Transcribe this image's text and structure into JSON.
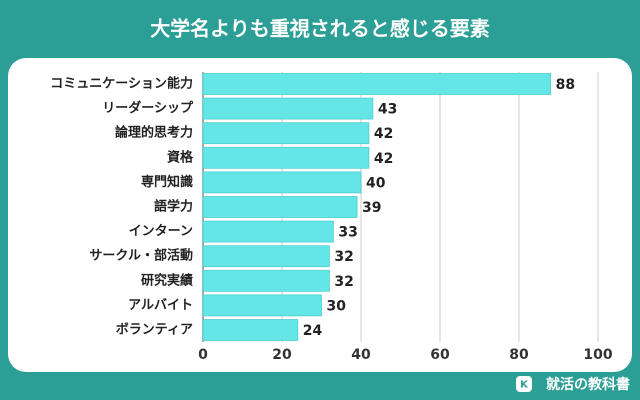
{
  "chart_data": {
    "type": "hbar",
    "title": "大学名よりも重視されると感じる要素",
    "categories": [
      "コミュニケーション能力",
      "リーダーシップ",
      "論理的思考力",
      "資格",
      "専門知識",
      "語学力",
      "インターン",
      "サークル・部活動",
      "研究実績",
      "アルバイト",
      "ボランティア"
    ],
    "values": [
      88,
      43,
      42,
      42,
      40,
      39,
      33,
      32,
      32,
      30,
      24
    ],
    "color": "#64e6e6",
    "xlim": [
      0,
      100
    ],
    "xticks": [
      0,
      20,
      40,
      60,
      80,
      100
    ],
    "grid": true
  },
  "footer": {
    "brand": "就活の教科書"
  }
}
